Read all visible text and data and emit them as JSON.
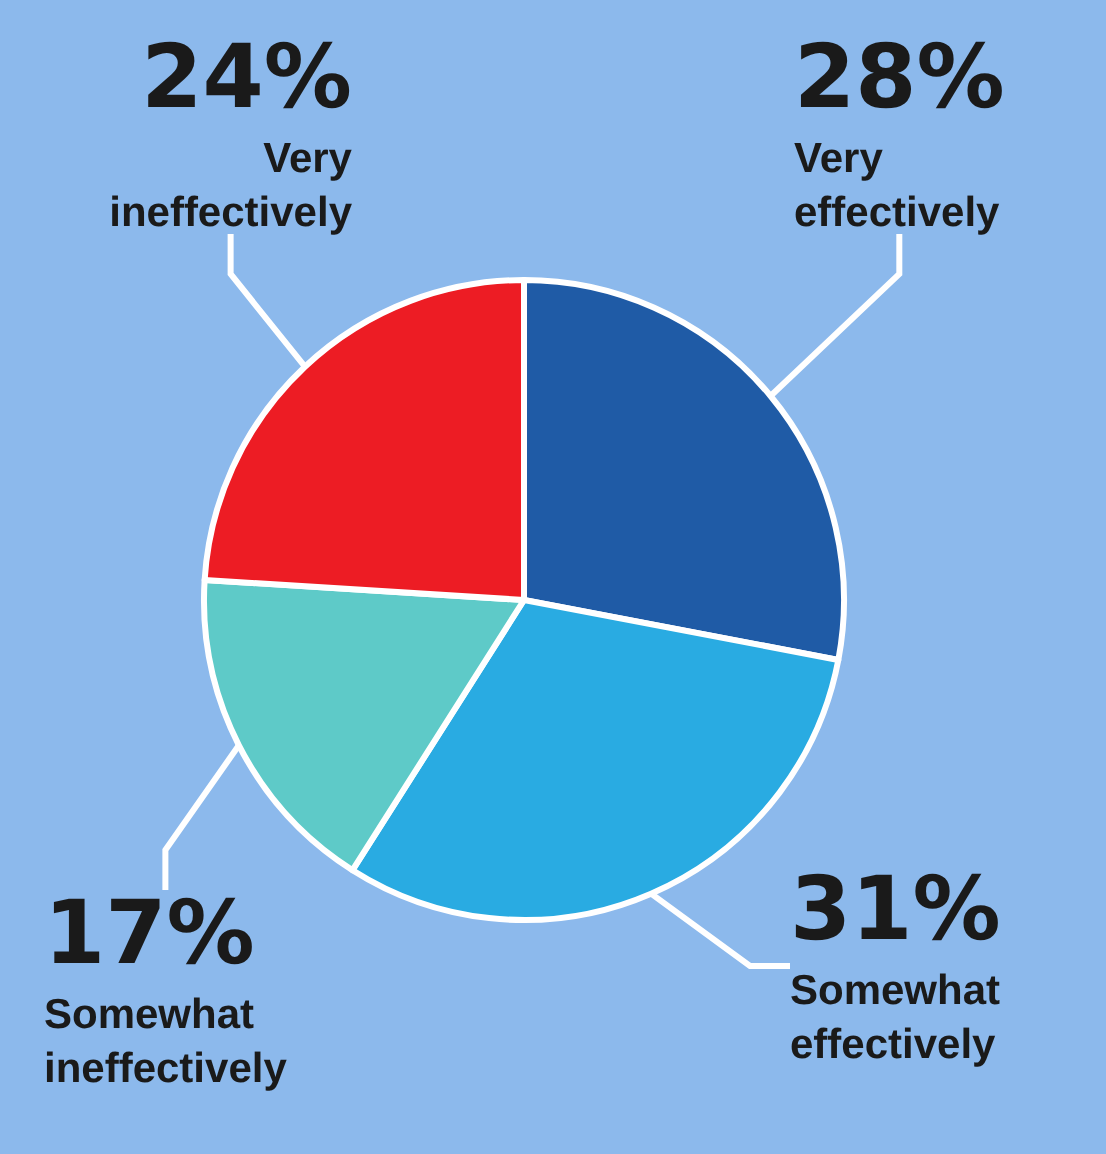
{
  "chart_data": {
    "type": "pie",
    "categories": [
      "Very effectively",
      "Somewhat effectively",
      "Somewhat ineffectively",
      "Very ineffectively"
    ],
    "values": [
      28,
      31,
      17,
      24
    ],
    "value_labels": [
      "28%",
      "31%",
      "17%",
      "24%"
    ],
    "colors": [
      "#1f5ba6",
      "#29abe2",
      "#5ecac8",
      "#ed1c24"
    ]
  }
}
